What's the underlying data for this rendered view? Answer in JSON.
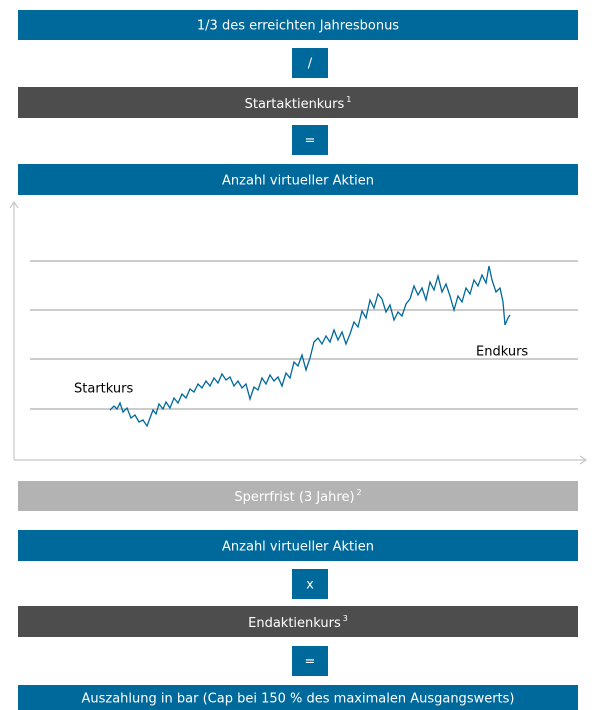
{
  "steps": [
    {
      "text": "1/3 des erreichten Jahresbonus"
    },
    {
      "text": "/"
    },
    {
      "text": "Startaktienkurs",
      "footnote": "1"
    },
    {
      "text": "="
    },
    {
      "text": "Anzahl virtueller Aktien"
    },
    {
      "text": "Sperrfrist (3 Jahre)",
      "footnote": "2"
    },
    {
      "text": "Anzahl virtueller Aktien"
    },
    {
      "text": "x"
    },
    {
      "text": "Endaktienkurs",
      "footnote": "3"
    },
    {
      "text": "="
    },
    {
      "text": "Auszahlung in bar (Cap bei 150 % des maximalen Ausgangswerts)"
    }
  ],
  "illustration": {
    "start_label": "Startkurs",
    "end_label": "Endkurs"
  }
}
